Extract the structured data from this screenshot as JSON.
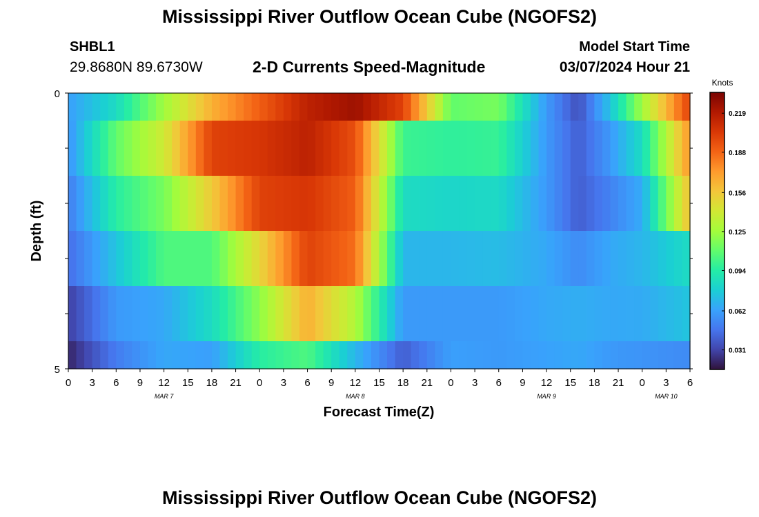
{
  "header": {
    "title": "Mississippi River Outflow Ocean Cube (NGOFS2)",
    "station_id": "SHBL1",
    "station_coords": "29.8680N  89.6730W",
    "plot_title": "2-D Currents Speed-Magnitude",
    "start_label": "Model Start Time",
    "start_value": "03/07/2024 Hour 21"
  },
  "footer": {
    "title": "Mississippi River Outflow Ocean Cube (NGOFS2)"
  },
  "colormap": [
    "#30123b",
    "#4145ab",
    "#4675ed",
    "#39a2fc",
    "#1bcfd4",
    "#24eca6",
    "#61fc6c",
    "#a4fc3b",
    "#d1e834",
    "#f3c63a",
    "#fe9b2d",
    "#f36315",
    "#d93806",
    "#b11901",
    "#7a0402"
  ],
  "chart_data": {
    "type": "heatmap",
    "title": "2-D Currents Speed-Magnitude",
    "xlabel": "Forecast Time(Z)",
    "ylabel": "Depth (ft)",
    "x_tick_labels": [
      "0",
      "3",
      "6",
      "9",
      "12",
      "15",
      "18",
      "21",
      "0",
      "3",
      "6",
      "9",
      "12",
      "15",
      "18",
      "21",
      "0",
      "3",
      "6",
      "9",
      "12",
      "15",
      "18",
      "21",
      "0",
      "3",
      "6"
    ],
    "date_labels": [
      {
        "label": "MAR 7",
        "hour": 12
      },
      {
        "label": "MAR 8",
        "hour": 36
      },
      {
        "label": "MAR 9",
        "hour": 60
      },
      {
        "label": "MAR 10",
        "hour": 75
      }
    ],
    "x_range_hours": [
      0,
      78
    ],
    "y_range_ft": [
      0,
      5
    ],
    "y_tick_labels": [
      "0",
      "5"
    ],
    "colorbar": {
      "label": "Knots",
      "min": 0.016,
      "max": 0.235,
      "ticks": [
        "0.031",
        "0.062",
        "0.094",
        "0.125",
        "0.156",
        "0.188",
        "0.219"
      ]
    },
    "layers": [
      {
        "depth_from": 0,
        "depth_to": 0.5,
        "speeds": [
          0.062,
          0.085,
          0.125,
          0.165,
          0.19,
          0.215,
          0.225,
          0.2,
          0.11,
          0.115,
          0.06,
          0.035,
          0.075,
          0.125,
          0.2
        ]
      },
      {
        "depth_from": 0.5,
        "depth_to": 1.5,
        "speeds": [
          0.058,
          0.11,
          0.14,
          0.2,
          0.205,
          0.215,
          0.195,
          0.1,
          0.097,
          0.099,
          0.06,
          0.04,
          0.06,
          0.085,
          0.175
        ]
      },
      {
        "depth_from": 1.5,
        "depth_to": 2.5,
        "speeds": [
          0.05,
          0.095,
          0.115,
          0.155,
          0.2,
          0.205,
          0.19,
          0.085,
          0.082,
          0.084,
          0.06,
          0.04,
          0.052,
          0.066,
          0.16
        ]
      },
      {
        "depth_from": 2.5,
        "depth_to": 3.5,
        "speeds": [
          0.045,
          0.075,
          0.105,
          0.105,
          0.15,
          0.2,
          0.185,
          0.07,
          0.07,
          0.072,
          0.065,
          0.055,
          0.065,
          0.07,
          0.085
        ]
      },
      {
        "depth_from": 3.5,
        "depth_to": 4.5,
        "speeds": [
          0.03,
          0.06,
          0.065,
          0.085,
          0.12,
          0.165,
          0.13,
          0.06,
          0.06,
          0.06,
          0.065,
          0.067,
          0.065,
          0.066,
          0.075
        ]
      },
      {
        "depth_from": 4.5,
        "depth_to": 5,
        "speeds": [
          0.022,
          0.05,
          0.065,
          0.062,
          0.095,
          0.105,
          0.07,
          0.04,
          0.062,
          0.06,
          0.063,
          0.065,
          0.06,
          0.058,
          0.055
        ]
      }
    ],
    "speed_sample_hours": [
      0,
      6,
      12,
      18,
      24,
      30,
      36,
      42,
      48,
      54,
      60,
      64,
      68,
      72,
      78
    ]
  }
}
